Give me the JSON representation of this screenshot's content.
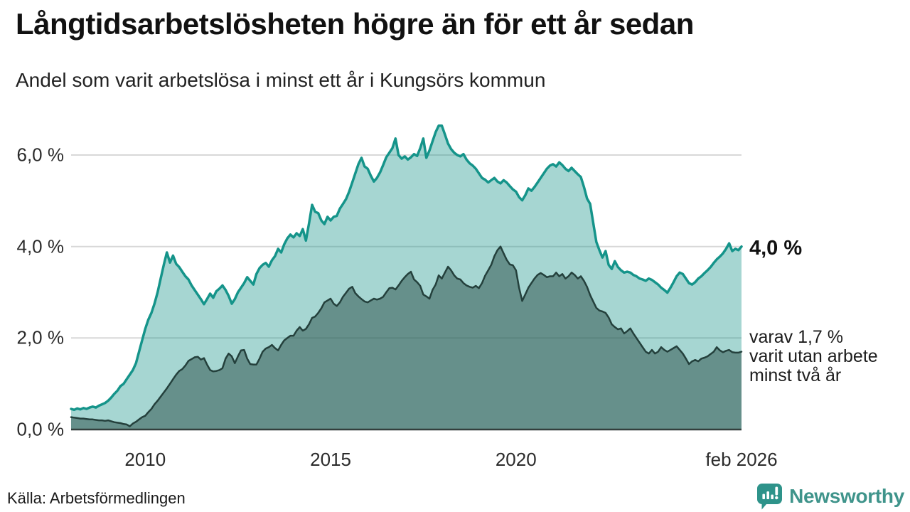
{
  "header": {
    "title": "Långtidsarbetslösheten högre än för ett år sedan",
    "subtitle": "Andel som varit arbetslösa i minst ett år i Kungsörs kommun"
  },
  "annotations": {
    "current_value": "4,0 %",
    "sub_line1": "varav 1,7 %",
    "sub_line2": "varit utan arbete",
    "sub_line3": "minst två år"
  },
  "footer": {
    "source": "Källa: Arbetsförmedlingen",
    "brand": "Newsworthy",
    "brand_icon": "speech-bubble-bar-chart"
  },
  "colors": {
    "accent_teal": "#15948a",
    "area_light_fill": "rgba(22,148,138,0.38)",
    "dark_line": "#24403c",
    "area_dark_fill": "rgba(45,80,74,0.52)",
    "grid": "#d8d8d8",
    "axis": "#333f3d",
    "brand_teal": "#3f948b"
  },
  "chart_data": {
    "type": "area",
    "title": "Långtidsarbetslösheten högre än för ett år sedan",
    "subtitle": "Andel som varit arbetslösa i minst ett år i Kungsörs kommun",
    "x_unit": "monthly",
    "x_range": [
      2008.0,
      2026.0833
    ],
    "ylim": [
      0,
      6.9
    ],
    "grid": "horizontal",
    "legend_position": "right-annotations",
    "y_ticks": [
      {
        "value": 0,
        "label": "0,0 %"
      },
      {
        "value": 2,
        "label": "2,0 %"
      },
      {
        "value": 4,
        "label": "4,0 %"
      },
      {
        "value": 6,
        "label": "6,0 %"
      }
    ],
    "x_ticks": [
      {
        "value": 2010,
        "label": "2010"
      },
      {
        "value": 2015,
        "label": "2015"
      },
      {
        "value": 2020,
        "label": "2020"
      },
      {
        "value": 2026.0833,
        "label": "feb 2026"
      }
    ],
    "series": [
      {
        "name": "Andel som varit arbetslösa minst ett år",
        "end_value_label": "4,0 %",
        "line_color": "#15948a",
        "fill_color": "rgba(22,148,138,0.38)",
        "line_width": 3.5,
        "values": [
          0.45,
          0.43,
          0.46,
          0.44,
          0.47,
          0.45,
          0.48,
          0.5,
          0.48,
          0.52,
          0.55,
          0.58,
          0.63,
          0.7,
          0.78,
          0.85,
          0.95,
          1.0,
          1.1,
          1.2,
          1.3,
          1.45,
          1.7,
          1.95,
          2.2,
          2.4,
          2.55,
          2.75,
          3.0,
          3.3,
          3.6,
          3.87,
          3.65,
          3.8,
          3.62,
          3.55,
          3.45,
          3.35,
          3.28,
          3.15,
          3.05,
          2.95,
          2.85,
          2.74,
          2.85,
          2.97,
          2.88,
          3.02,
          3.08,
          3.15,
          3.05,
          2.92,
          2.75,
          2.85,
          3.0,
          3.1,
          3.2,
          3.33,
          3.25,
          3.17,
          3.4,
          3.53,
          3.6,
          3.64,
          3.56,
          3.7,
          3.79,
          3.95,
          3.87,
          4.05,
          4.18,
          4.26,
          4.2,
          4.29,
          4.23,
          4.38,
          4.13,
          4.5,
          4.91,
          4.76,
          4.73,
          4.57,
          4.49,
          4.65,
          4.57,
          4.65,
          4.67,
          4.83,
          4.93,
          5.04,
          5.2,
          5.4,
          5.6,
          5.8,
          5.94,
          5.75,
          5.7,
          5.55,
          5.42,
          5.5,
          5.62,
          5.78,
          5.95,
          6.05,
          6.15,
          6.36,
          6.0,
          5.92,
          5.97,
          5.9,
          5.95,
          6.02,
          5.98,
          6.15,
          6.36,
          5.94,
          6.1,
          6.3,
          6.5,
          6.64,
          6.64,
          6.45,
          6.25,
          6.13,
          6.05,
          6.0,
          5.97,
          6.02,
          5.9,
          5.82,
          5.77,
          5.7,
          5.6,
          5.5,
          5.46,
          5.4,
          5.45,
          5.5,
          5.42,
          5.38,
          5.45,
          5.4,
          5.32,
          5.25,
          5.2,
          5.08,
          5.01,
          5.12,
          5.27,
          5.22,
          5.3,
          5.4,
          5.5,
          5.6,
          5.7,
          5.77,
          5.8,
          5.75,
          5.84,
          5.78,
          5.7,
          5.65,
          5.72,
          5.65,
          5.58,
          5.52,
          5.3,
          5.05,
          4.93,
          4.52,
          4.1,
          3.92,
          3.76,
          3.9,
          3.6,
          3.51,
          3.68,
          3.55,
          3.48,
          3.43,
          3.45,
          3.43,
          3.38,
          3.35,
          3.3,
          3.28,
          3.25,
          3.3,
          3.27,
          3.22,
          3.17,
          3.1,
          3.05,
          2.99,
          3.1,
          3.22,
          3.35,
          3.43,
          3.4,
          3.3,
          3.2,
          3.17,
          3.22,
          3.3,
          3.35,
          3.42,
          3.48,
          3.55,
          3.64,
          3.72,
          3.78,
          3.85,
          3.95,
          4.07,
          3.9,
          3.95,
          3.92,
          4.0
        ]
      },
      {
        "name": "varav varit utan arbete minst två år",
        "end_value_label": "1,7 %",
        "line_color": "#24403c",
        "fill_color": "rgba(45,80,74,0.52)",
        "line_width": 2.5,
        "values": [
          0.27,
          0.26,
          0.25,
          0.24,
          0.24,
          0.23,
          0.22,
          0.22,
          0.21,
          0.2,
          0.2,
          0.19,
          0.2,
          0.18,
          0.16,
          0.15,
          0.14,
          0.12,
          0.11,
          0.07,
          0.13,
          0.17,
          0.22,
          0.27,
          0.3,
          0.38,
          0.45,
          0.55,
          0.63,
          0.72,
          0.81,
          0.9,
          1.0,
          1.1,
          1.2,
          1.28,
          1.32,
          1.4,
          1.5,
          1.54,
          1.58,
          1.59,
          1.53,
          1.56,
          1.42,
          1.3,
          1.27,
          1.28,
          1.3,
          1.34,
          1.55,
          1.66,
          1.6,
          1.45,
          1.6,
          1.73,
          1.74,
          1.55,
          1.43,
          1.42,
          1.42,
          1.55,
          1.7,
          1.77,
          1.8,
          1.85,
          1.78,
          1.73,
          1.85,
          1.95,
          2.0,
          2.05,
          2.05,
          2.16,
          2.24,
          2.16,
          2.2,
          2.3,
          2.44,
          2.47,
          2.55,
          2.65,
          2.78,
          2.82,
          2.86,
          2.75,
          2.7,
          2.78,
          2.9,
          2.99,
          3.08,
          3.12,
          2.98,
          2.91,
          2.85,
          2.8,
          2.78,
          2.82,
          2.86,
          2.84,
          2.86,
          2.9,
          3.0,
          3.09,
          3.1,
          3.06,
          3.15,
          3.25,
          3.33,
          3.4,
          3.45,
          3.28,
          3.22,
          3.14,
          2.95,
          2.91,
          2.86,
          3.05,
          3.17,
          3.37,
          3.3,
          3.43,
          3.56,
          3.48,
          3.37,
          3.3,
          3.28,
          3.2,
          3.15,
          3.12,
          3.1,
          3.14,
          3.09,
          3.2,
          3.36,
          3.48,
          3.6,
          3.79,
          3.92,
          4.0,
          3.85,
          3.71,
          3.61,
          3.59,
          3.48,
          3.1,
          2.81,
          2.95,
          3.1,
          3.2,
          3.3,
          3.38,
          3.42,
          3.38,
          3.33,
          3.35,
          3.35,
          3.43,
          3.35,
          3.4,
          3.3,
          3.35,
          3.43,
          3.38,
          3.3,
          3.35,
          3.25,
          3.12,
          2.94,
          2.8,
          2.66,
          2.6,
          2.58,
          2.55,
          2.45,
          2.3,
          2.24,
          2.19,
          2.21,
          2.1,
          2.15,
          2.21,
          2.1,
          2.0,
          1.9,
          1.8,
          1.7,
          1.66,
          1.74,
          1.66,
          1.7,
          1.8,
          1.74,
          1.7,
          1.74,
          1.78,
          1.82,
          1.74,
          1.66,
          1.55,
          1.43,
          1.49,
          1.52,
          1.49,
          1.55,
          1.57,
          1.6,
          1.65,
          1.7,
          1.8,
          1.73,
          1.69,
          1.72,
          1.74,
          1.69,
          1.68,
          1.68,
          1.7
        ]
      }
    ]
  }
}
